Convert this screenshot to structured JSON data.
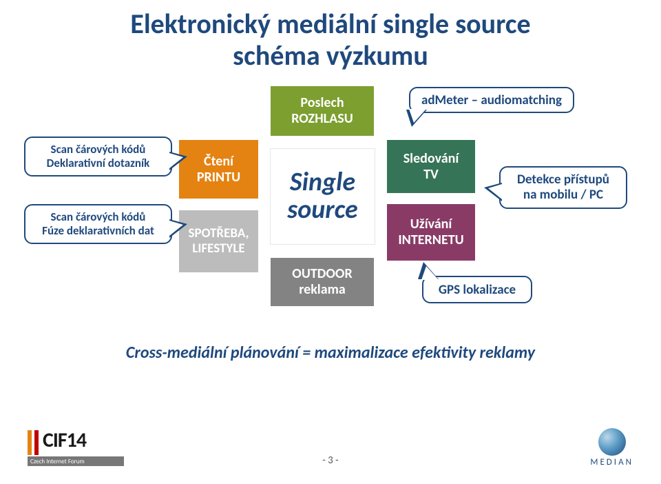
{
  "title_line1": "Elektronický mediální single source",
  "title_line2": "schéma výzkumu",
  "boxes": {
    "radio": {
      "l1": "Poslech",
      "l2": "ROZHLASU",
      "bg": "#7c9f2f"
    },
    "print": {
      "l1": "Čtení",
      "l2": "PRINTU",
      "bg": "#e48312"
    },
    "center": {
      "l1": "Single",
      "l2": "source",
      "color": "#1f497d"
    },
    "tv": {
      "l1": "Sledování",
      "l2": "TV",
      "bg": "#367457"
    },
    "lifestyle": {
      "l1": "SPOTŘEBA,",
      "l2": "LIFESTYLE",
      "bg": "#bcbcbc"
    },
    "internet": {
      "l1": "Užívání",
      "l2": "INTERNETU",
      "bg": "#893b66"
    },
    "outdoor": {
      "l1": "OUTDOOR",
      "l2": "reklama",
      "bg": "#838383"
    }
  },
  "callouts": {
    "admeter": "adMeter – audiomatching",
    "detekce_l1": "Detekce přístupů",
    "detekce_l2": "na mobilu / PC",
    "gps": "GPS lokalizace",
    "scan1_l1": "Scan čárových kódů",
    "scan1_l2": "Deklarativní dotazník",
    "scan2_l1": "Scan čárových kódů",
    "scan2_l2": "Fúze deklarativních dat"
  },
  "footer": "Cross-mediální plánování  = maximalizace efektivity reklamy",
  "page_num": "- 3 -",
  "cif_text": "CIF14",
  "cif_sub": "Czech Internet Forum",
  "median_text": "MEDIAN",
  "colors": {
    "title": "#1f497d",
    "callout_border": "#1f497d",
    "page_bg": "#ffffff"
  }
}
